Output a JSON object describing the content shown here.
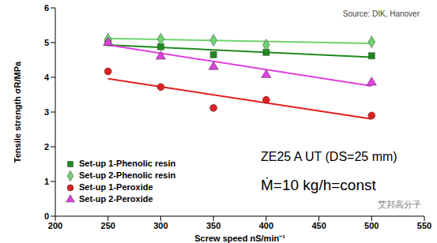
{
  "chart_data": {
    "type": "scatter",
    "source": "Source: DIK, Hanover",
    "annotations": [
      "ZE25 A UT (DS=25 mm)",
      "Ṁ=10 kg/h=const"
    ],
    "watermark": "艾邦高分子",
    "x_label": "Screw speed nS/min⁻¹",
    "y_label": "Tensile strength σR/MPa",
    "x": [
      250,
      300,
      350,
      400,
      500
    ],
    "xlim": [
      200,
      550
    ],
    "xticks": [
      200,
      250,
      300,
      350,
      400,
      450,
      500,
      550
    ],
    "ylim": [
      0,
      6
    ],
    "yticks": [
      0,
      1,
      2,
      3,
      4,
      5,
      6
    ],
    "grid": false,
    "legend": "lower left",
    "series": [
      {
        "name": "Set-up 1-Phenolic resin",
        "color": "#1f8a1f",
        "marker": "square",
        "values": [
          5.0,
          4.88,
          4.65,
          4.72,
          4.62
        ],
        "trend_x": [
          250,
          500
        ],
        "trend": [
          4.93,
          4.58
        ]
      },
      {
        "name": "Set-up 2-Phenolic resin",
        "color": "#6fd36f",
        "marker": "diamond",
        "values": [
          5.1,
          5.1,
          5.07,
          4.93,
          5.02
        ],
        "trend_x": [
          250,
          500
        ],
        "trend": [
          5.12,
          4.98
        ]
      },
      {
        "name": "Set-up 1-Peroxide",
        "color": "#e02020",
        "marker": "circle",
        "values": [
          4.17,
          3.72,
          3.12,
          3.35,
          2.9
        ],
        "trend_x": [
          250,
          500
        ],
        "trend": [
          3.96,
          2.8
        ]
      },
      {
        "name": "Set-up 2-Peroxide",
        "color": "#e040e0",
        "marker": "triangle",
        "values": [
          5.0,
          4.6,
          4.3,
          4.07,
          3.85
        ],
        "trend_x": [
          250,
          500
        ],
        "trend": [
          4.93,
          3.75
        ]
      }
    ]
  }
}
